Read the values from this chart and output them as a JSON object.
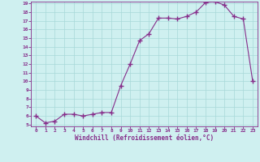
{
  "x": [
    0,
    1,
    2,
    3,
    4,
    5,
    6,
    7,
    8,
    9,
    10,
    11,
    12,
    13,
    14,
    15,
    16,
    17,
    18,
    19,
    20,
    21,
    22,
    23
  ],
  "y": [
    6.0,
    5.2,
    5.4,
    6.2,
    6.2,
    6.0,
    6.2,
    6.4,
    6.4,
    9.5,
    12.0,
    14.7,
    15.5,
    17.3,
    17.3,
    17.2,
    17.5,
    18.0,
    19.1,
    19.2,
    18.8,
    17.5,
    17.2,
    10.0
  ],
  "line_color": "#862d8a",
  "marker": "+",
  "marker_size": 4,
  "bg_color": "#cff0f0",
  "grid_color": "#a8d8d8",
  "xlabel": "Windchill (Refroidissement éolien,°C)",
  "tick_color": "#862d8a",
  "ylim": [
    5,
    19
  ],
  "xlim": [
    -0.5,
    23.5
  ],
  "yticks": [
    5,
    6,
    7,
    8,
    9,
    10,
    11,
    12,
    13,
    14,
    15,
    16,
    17,
    18,
    19
  ],
  "xticks": [
    0,
    1,
    2,
    3,
    4,
    5,
    6,
    7,
    8,
    9,
    10,
    11,
    12,
    13,
    14,
    15,
    16,
    17,
    18,
    19,
    20,
    21,
    22,
    23
  ]
}
